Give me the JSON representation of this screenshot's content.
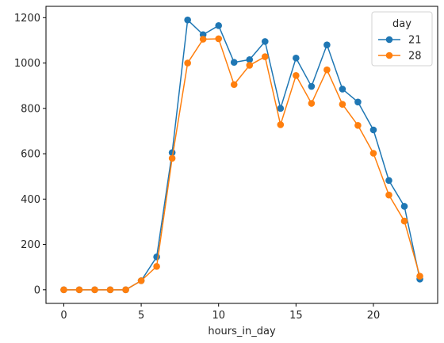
{
  "chart_data": {
    "type": "line",
    "xlabel": "hours_in_day",
    "ylabel": "",
    "x": [
      0,
      1,
      2,
      3,
      4,
      5,
      6,
      7,
      8,
      9,
      10,
      11,
      12,
      13,
      14,
      15,
      16,
      17,
      18,
      19,
      20,
      21,
      22,
      23
    ],
    "xlim": [
      -1.15,
      24.15
    ],
    "ylim": [
      -60,
      1250
    ],
    "xticks": [
      0,
      5,
      10,
      15,
      20
    ],
    "yticks": [
      0,
      200,
      400,
      600,
      800,
      1000,
      1200
    ],
    "grid": false,
    "legend": {
      "title": "day",
      "placement": "top-right"
    },
    "series": [
      {
        "name": "21",
        "color": "#1f77b4",
        "values": [
          0,
          0,
          0,
          0,
          0,
          40,
          145,
          605,
          1190,
          1125,
          1165,
          1003,
          1015,
          1095,
          800,
          1022,
          897,
          1080,
          885,
          828,
          705,
          482,
          368,
          47
        ]
      },
      {
        "name": "28",
        "color": "#ff7f0e",
        "values": [
          0,
          0,
          0,
          0,
          0,
          40,
          103,
          580,
          1000,
          1105,
          1107,
          905,
          990,
          1028,
          728,
          945,
          822,
          970,
          818,
          725,
          602,
          418,
          303,
          60
        ]
      }
    ]
  }
}
